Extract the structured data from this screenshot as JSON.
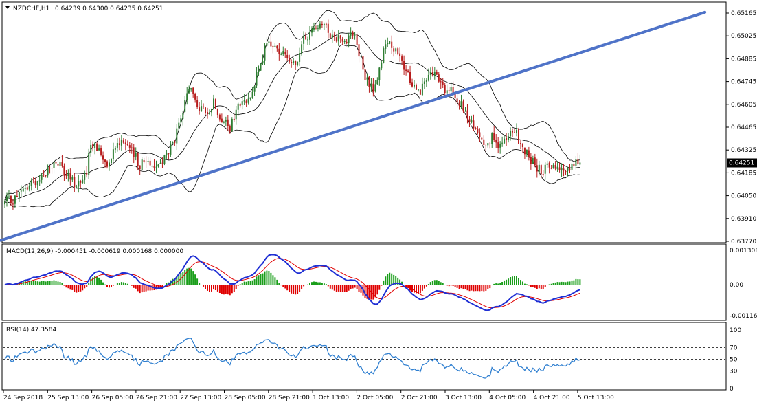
{
  "main_header": {
    "title": "NZDCHF,H1",
    "ohlc": "0.64239 0.64300 0.64235 0.64251",
    "dropdown_icon": "triangle-down-icon"
  },
  "macd_header": {
    "title": "MACD(12,26,9) -0.000451 -0.000619 0.000168 0.000000"
  },
  "rsi_header": {
    "title": "RSI(14) 47.3584"
  },
  "colors": {
    "bull_candle": "#2e7d32",
    "bear_candle": "#b71c1c",
    "trendline": "#4f73c8",
    "bands": "#000000",
    "macd_line": "#1f2fd4",
    "signal_line": "#e00000",
    "hist_pos": "#1a9e1a",
    "hist_neg": "#e00000",
    "rsi_line": "#2f7fd0",
    "price_tag_bg": "#000000",
    "price_tag_fg": "#ffffff"
  },
  "chart_data": [
    {
      "type": "candlestick",
      "symbol": "NZDCHF",
      "timeframe": "H1",
      "last_price_label": "0.64251",
      "y_ticks": [
        "0.65165",
        "0.65025",
        "0.64885",
        "0.64745",
        "0.64605",
        "0.64465",
        "0.64325",
        "0.64185",
        "0.64050",
        "0.63910",
        "0.63770"
      ],
      "ylim": [
        0.6377,
        0.65165
      ],
      "x_ticks": [
        "24 Sep 2018",
        "25 Sep 13:00",
        "26 Sep 05:00",
        "26 Sep 21:00",
        "27 Sep 13:00",
        "28 Sep 05:00",
        "28 Sep 21:00",
        "1 Oct 13:00",
        "2 Oct 05:00",
        "2 Oct 21:00",
        "3 Oct 13:00",
        "4 Oct 05:00",
        "4 Oct 21:00",
        "5 Oct 13:00"
      ],
      "close_anchors": [
        [
          0,
          0.6401
        ],
        [
          5,
          0.6403
        ],
        [
          12,
          0.6411
        ],
        [
          20,
          0.6419
        ],
        [
          25,
          0.6426
        ],
        [
          30,
          0.6417
        ],
        [
          35,
          0.6412
        ],
        [
          40,
          0.6418
        ],
        [
          42,
          0.6438
        ],
        [
          46,
          0.6432
        ],
        [
          50,
          0.6425
        ],
        [
          54,
          0.6436
        ],
        [
          58,
          0.644
        ],
        [
          62,
          0.6431
        ],
        [
          64,
          0.6428
        ],
        [
          66,
          0.6424
        ],
        [
          70,
          0.6427
        ],
        [
          74,
          0.6422
        ],
        [
          78,
          0.6428
        ],
        [
          82,
          0.6436
        ],
        [
          86,
          0.645
        ],
        [
          90,
          0.6472
        ],
        [
          94,
          0.646
        ],
        [
          98,
          0.6455
        ],
        [
          102,
          0.6462
        ],
        [
          106,
          0.6452
        ],
        [
          110,
          0.6445
        ],
        [
          114,
          0.646
        ],
        [
          118,
          0.6462
        ],
        [
          122,
          0.6474
        ],
        [
          126,
          0.6488
        ],
        [
          128,
          0.65
        ],
        [
          132,
          0.6495
        ],
        [
          136,
          0.6492
        ],
        [
          140,
          0.6488
        ],
        [
          142,
          0.6482
        ],
        [
          146,
          0.65
        ],
        [
          150,
          0.6505
        ],
        [
          154,
          0.6512
        ],
        [
          158,
          0.6505
        ],
        [
          162,
          0.6502
        ],
        [
          166,
          0.65
        ],
        [
          170,
          0.6505
        ],
        [
          174,
          0.6488
        ],
        [
          176,
          0.6476
        ],
        [
          180,
          0.647
        ],
        [
          184,
          0.6485
        ],
        [
          186,
          0.65
        ],
        [
          190,
          0.6495
        ],
        [
          194,
          0.6485
        ],
        [
          198,
          0.6476
        ],
        [
          202,
          0.6468
        ],
        [
          206,
          0.6475
        ],
        [
          210,
          0.648
        ],
        [
          214,
          0.647
        ],
        [
          218,
          0.6468
        ],
        [
          222,
          0.6462
        ],
        [
          226,
          0.6452
        ],
        [
          230,
          0.6445
        ],
        [
          234,
          0.6438
        ],
        [
          238,
          0.644
        ],
        [
          242,
          0.6435
        ],
        [
          246,
          0.644
        ],
        [
          248,
          0.6445
        ],
        [
          250,
          0.6442
        ],
        [
          254,
          0.6432
        ],
        [
          258,
          0.6425
        ],
        [
          262,
          0.642
        ],
        [
          266,
          0.6424
        ],
        [
          270,
          0.6423
        ],
        [
          274,
          0.642
        ],
        [
          278,
          0.6424
        ],
        [
          281,
          0.6425
        ]
      ],
      "volatility": 0.00045,
      "trendline": {
        "from": [
          -2,
          0.63776
        ],
        "to": [
          342,
          0.6517
        ]
      },
      "bands_period": 20,
      "bands_deviation": 2
    },
    {
      "type": "macd",
      "fast": 12,
      "slow": 26,
      "signal": 9,
      "y_ticks": [
        "0.001301",
        "0.00",
        "-0.001168"
      ],
      "ylim": [
        -0.001168,
        0.001301
      ]
    },
    {
      "type": "rsi",
      "period": 14,
      "y_ticks": [
        "100",
        "70",
        "50",
        "30",
        "0"
      ],
      "levels": [
        70,
        50,
        30
      ],
      "ylim": [
        0,
        100
      ]
    }
  ]
}
